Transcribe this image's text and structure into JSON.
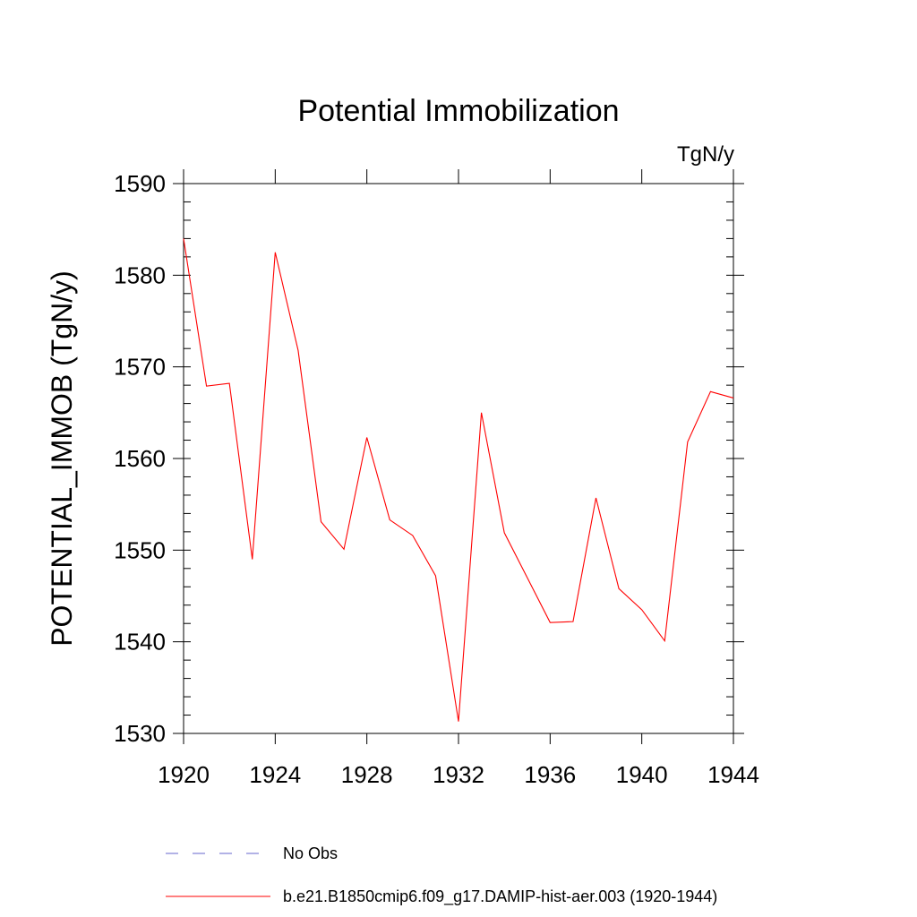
{
  "chart_data": {
    "type": "line",
    "title": "Potential Immobilization",
    "units_label": "TgN/y",
    "ylabel": "POTENTIAL_IMMOB  (TgN/y)",
    "xlabel": "",
    "xlim": [
      1920,
      1944
    ],
    "ylim": [
      1530,
      1590
    ],
    "x_ticks": [
      1920,
      1924,
      1928,
      1932,
      1936,
      1940,
      1944
    ],
    "y_ticks": [
      1530,
      1540,
      1550,
      1560,
      1570,
      1580,
      1590
    ],
    "grid": false,
    "legend_position": "bottom",
    "series": [
      {
        "name": "b.e21.B1850cmip6.f09_g17.DAMIP-hist-aer.003 (1920-1944)",
        "color": "#ff0000",
        "style": "solid",
        "x": [
          1920,
          1921,
          1922,
          1923,
          1924,
          1925,
          1926,
          1927,
          1928,
          1929,
          1930,
          1931,
          1932,
          1933,
          1934,
          1935,
          1936,
          1937,
          1938,
          1939,
          1940,
          1941,
          1942,
          1943,
          1944
        ],
        "values": [
          1584.0,
          1567.9,
          1568.2,
          1549.0,
          1582.5,
          1571.8,
          1553.1,
          1550.1,
          1562.3,
          1553.3,
          1551.6,
          1547.2,
          1531.3,
          1565.0,
          1551.9,
          1547.0,
          1542.1,
          1542.2,
          1555.7,
          1545.8,
          1543.5,
          1540.1,
          1561.8,
          1567.3,
          1566.6
        ]
      }
    ],
    "legend": [
      {
        "label": "No Obs",
        "color": "#6666cc",
        "style": "dashed"
      },
      {
        "label": "b.e21.B1850cmip6.f09_g17.DAMIP-hist-aer.003 (1920-1944)",
        "color": "#ff0000",
        "style": "solid"
      }
    ]
  }
}
